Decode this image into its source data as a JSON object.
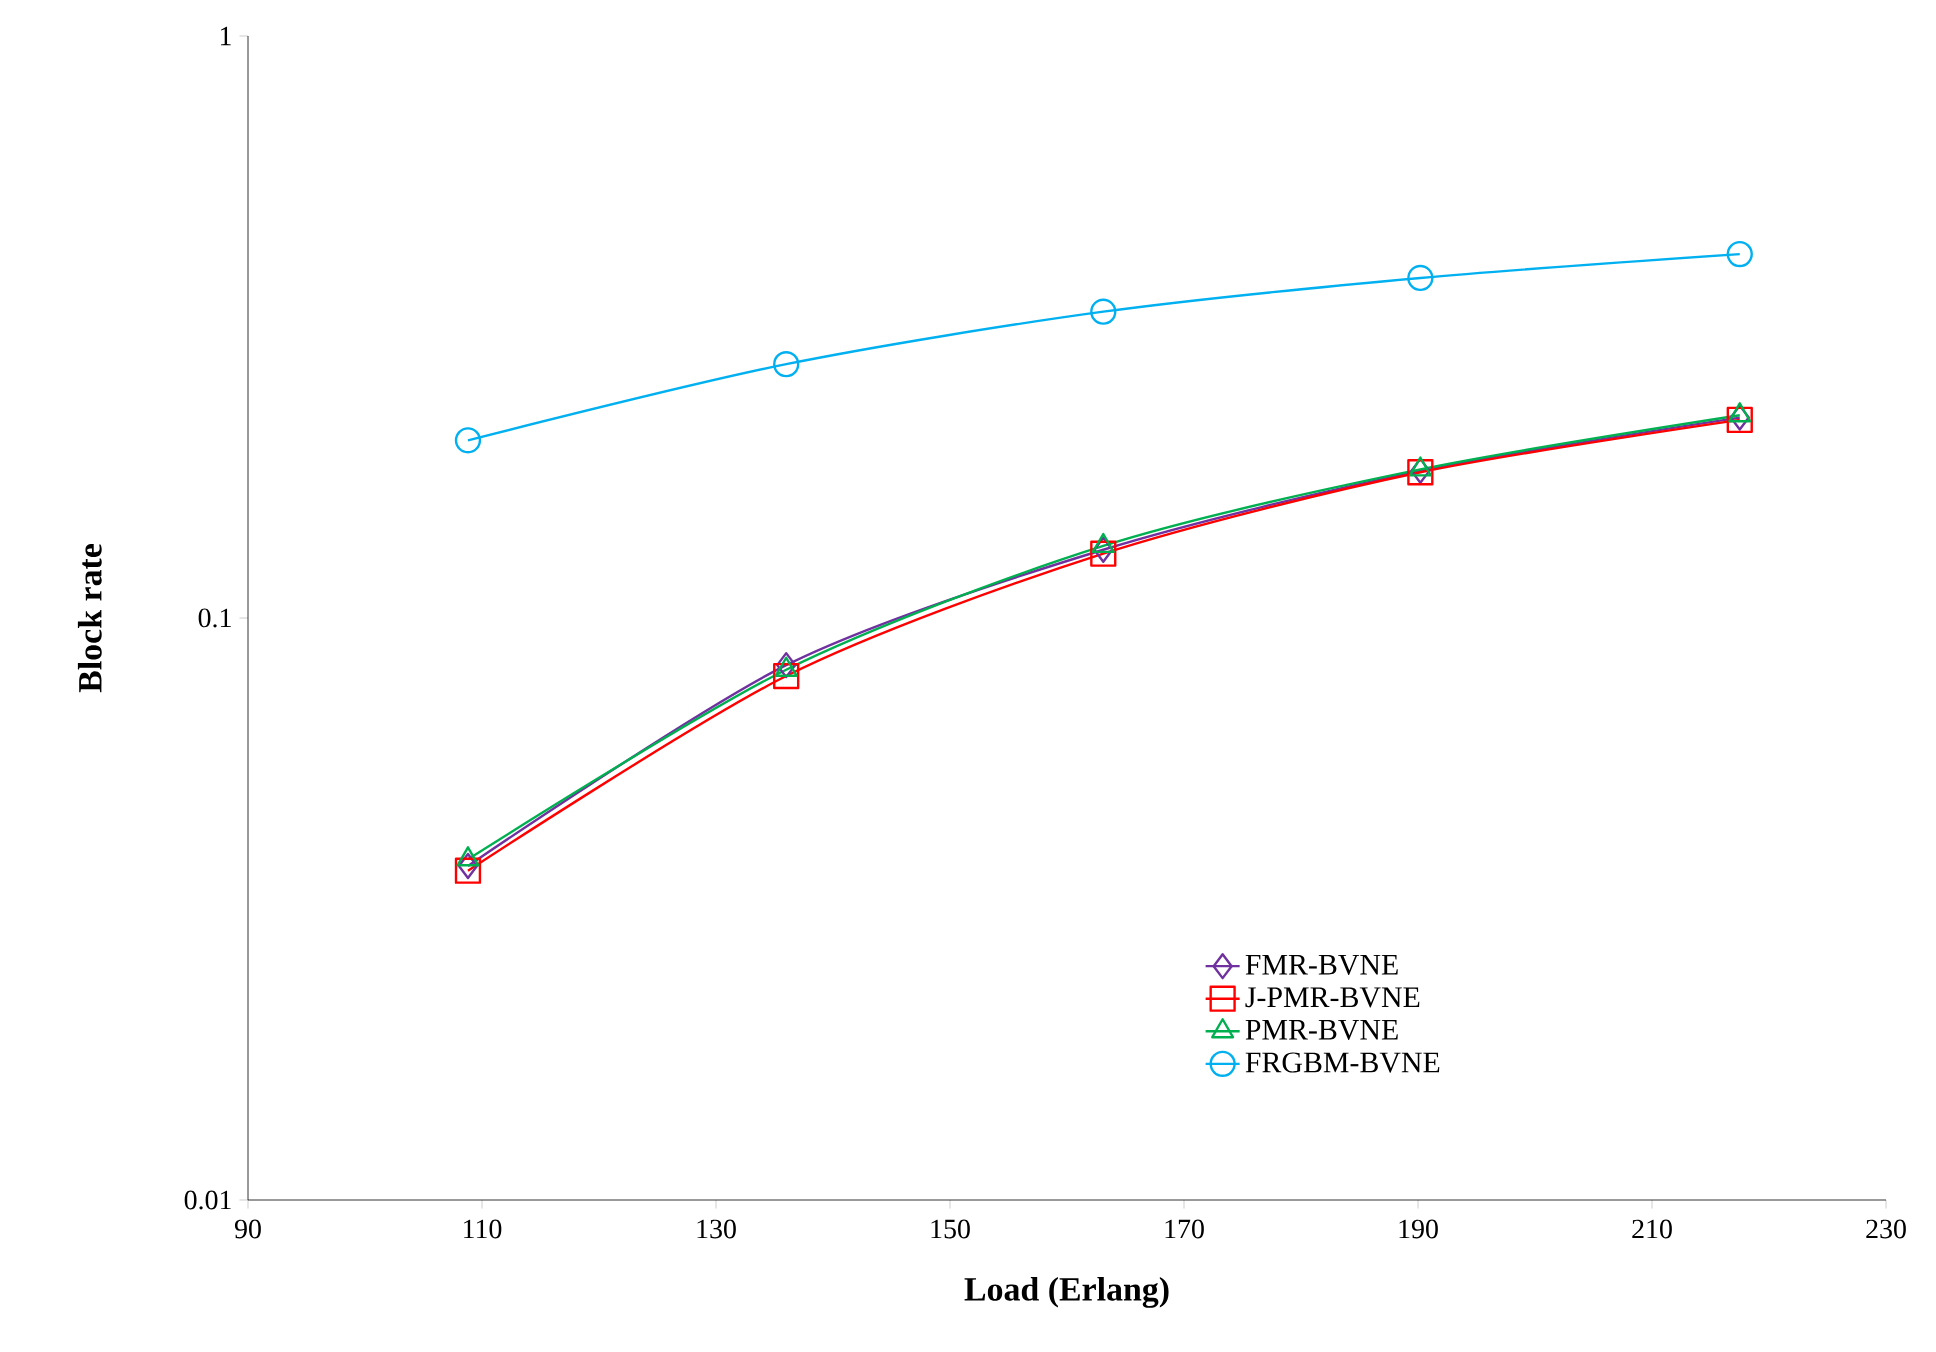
{
  "chart_data": {
    "type": "line",
    "xlabel": "Load (Erlang)",
    "ylabel": "Block rate",
    "x": [
      108.8,
      136,
      163.1,
      190.2,
      217.5
    ],
    "series": [
      {
        "name": "FMR-BVNE",
        "color": "#7030a0",
        "marker": "diamond",
        "values": [
          0.0375,
          0.083,
          0.131,
          0.179,
          0.221
        ]
      },
      {
        "name": "J-PMR-BVNE",
        "color": "#ff0000",
        "marker": "square",
        "values": [
          0.0368,
          0.0795,
          0.129,
          0.178,
          0.219
        ]
      },
      {
        "name": "PMR-BVNE",
        "color": "#00b050",
        "marker": "triangle",
        "values": [
          0.0385,
          0.0815,
          0.133,
          0.18,
          0.223
        ]
      },
      {
        "name": "FRGBM-BVNE",
        "color": "#00b0f0",
        "marker": "circle",
        "values": [
          0.202,
          0.273,
          0.336,
          0.384,
          0.422
        ]
      }
    ],
    "log": "y",
    "xlim": [
      90,
      230
    ],
    "ylim": [
      0.01,
      1
    ],
    "xticks": [
      90,
      110,
      130,
      150,
      170,
      190,
      210,
      230
    ],
    "yticks": [
      0.01,
      0.1,
      1
    ],
    "legend": "bottom right",
    "grid": false,
    "line_style": "solid"
  }
}
